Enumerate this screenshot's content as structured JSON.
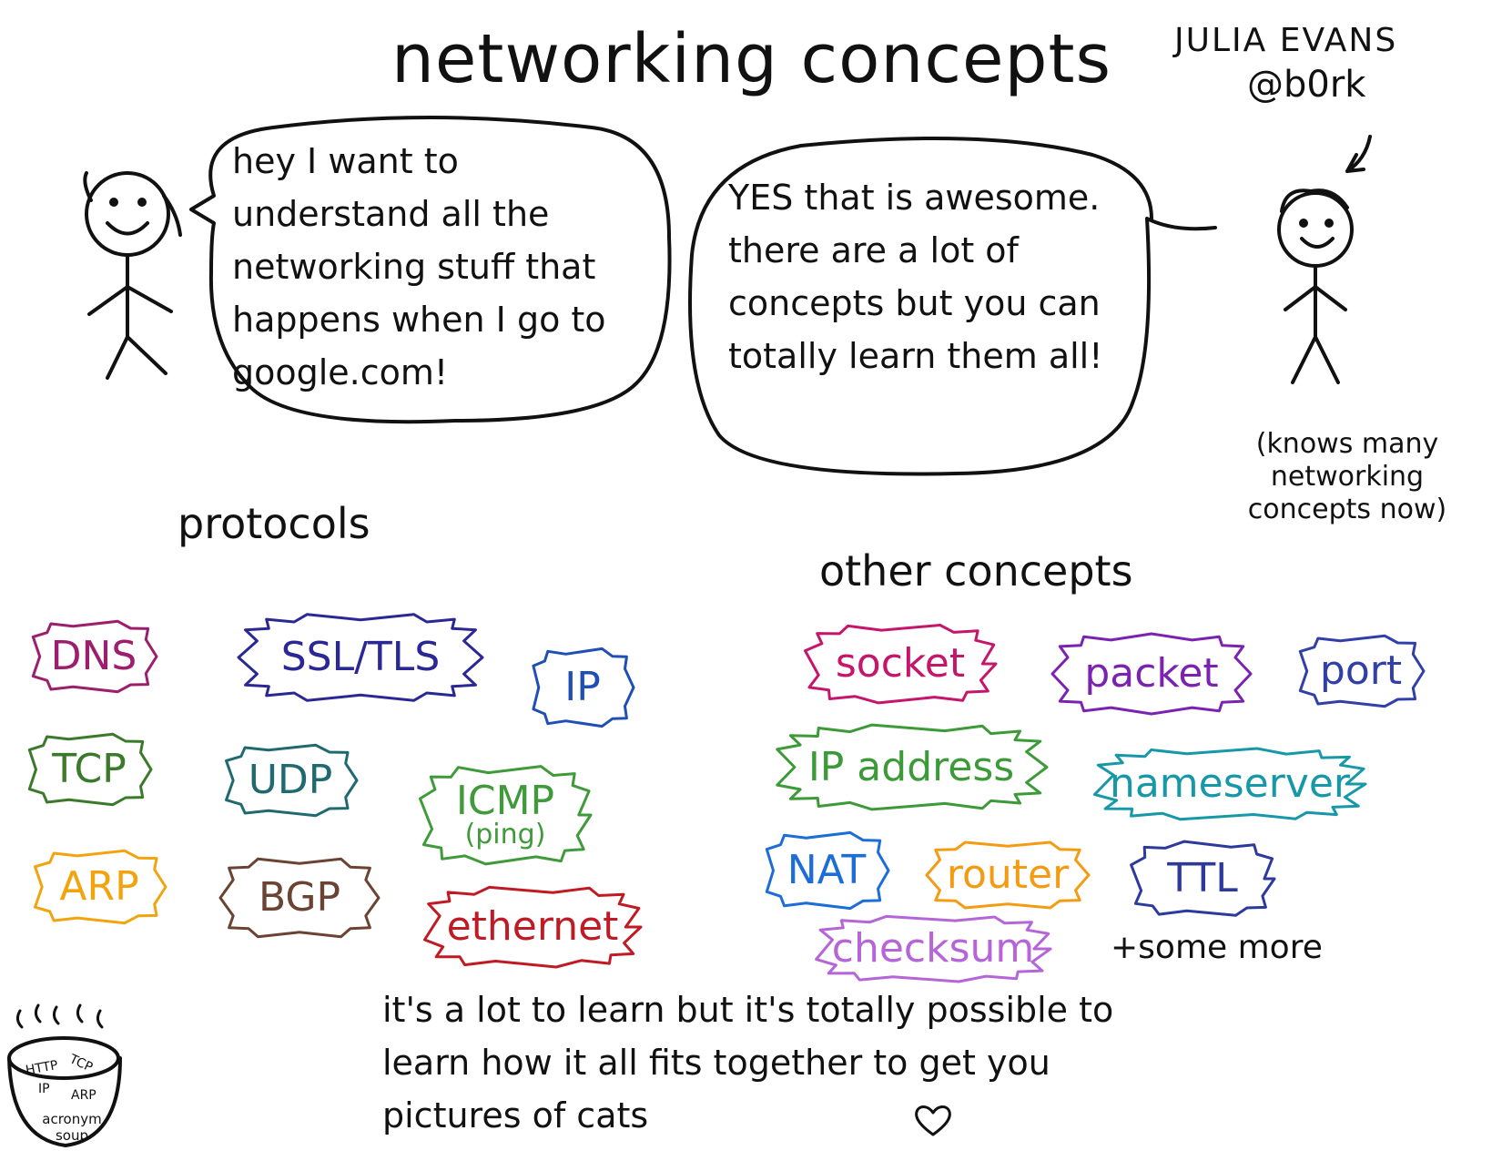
{
  "title": "networking concepts",
  "author": {
    "name": "JULIA EVANS",
    "handle": "@b0rk"
  },
  "dialogue": {
    "left_speech": "hey I want to understand all the networking stuff that happens when I go to google.com!",
    "right_speech": "YES that is awesome. there are a lot of concepts but you can totally learn them all!"
  },
  "character_note": "(knows many networking concepts now)",
  "protocols": {
    "heading": "protocols",
    "tags": [
      {
        "label": "DNS",
        "color": "#9c1f6e"
      },
      {
        "label": "SSL/TLS",
        "color": "#2b2795"
      },
      {
        "label": "IP",
        "color": "#1f4fb4"
      },
      {
        "label": "TCP",
        "color": "#3a7a2a"
      },
      {
        "label": "UDP",
        "color": "#1e6a70"
      },
      {
        "label": "ICMP",
        "sub": "(ping)",
        "color": "#3f9a3a"
      },
      {
        "label": "ARP",
        "color": "#f2a40f"
      },
      {
        "label": "BGP",
        "color": "#6b4332"
      },
      {
        "label": "ethernet",
        "color": "#c01b24"
      }
    ]
  },
  "other_concepts": {
    "heading": "other concepts",
    "tags": [
      {
        "label": "socket",
        "color": "#c4166a"
      },
      {
        "label": "packet",
        "color": "#7b22b0"
      },
      {
        "label": "port",
        "color": "#3040a8"
      },
      {
        "label": "IP address",
        "color": "#3c9a38"
      },
      {
        "label": "nameserver",
        "color": "#1798a8"
      },
      {
        "label": "NAT",
        "color": "#1d6dd6"
      },
      {
        "label": "router",
        "color": "#f39c12"
      },
      {
        "label": "TTL",
        "color": "#2c3a9c"
      },
      {
        "label": "checksum",
        "color": "#b565d8"
      }
    ],
    "more_note": "+some more"
  },
  "closing_note": "it's a lot to learn but it's totally possible to learn how it all fits together to get you pictures of cats",
  "acronym_soup": {
    "words": [
      "HTTP",
      "TCP",
      "IP",
      "ARP"
    ],
    "label": "acronym soup"
  }
}
